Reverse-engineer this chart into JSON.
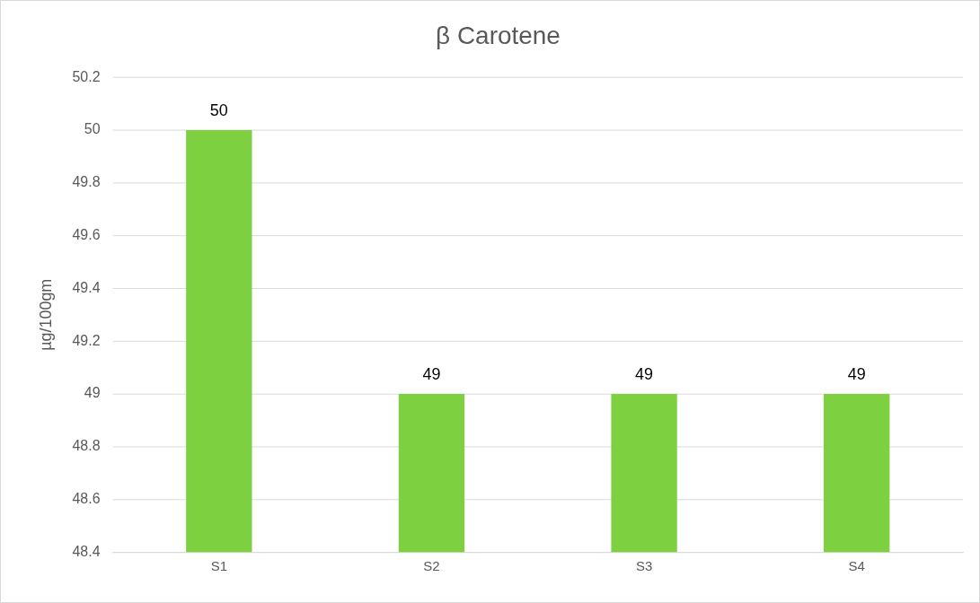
{
  "chart_data": {
    "type": "bar",
    "title": "β Carotene",
    "ylabel": "µg/100gm",
    "categories": [
      "S1",
      "S2",
      "S3",
      "S4"
    ],
    "values": [
      50,
      49,
      49,
      49
    ],
    "color": "#7dd03f",
    "ylim": [
      48.4,
      50.2
    ],
    "yticks": [
      48.4,
      48.6,
      48.8,
      49,
      49.2,
      49.4,
      49.6,
      49.8,
      50,
      50.2
    ],
    "grid": "y",
    "data_labels": true,
    "legend": false
  }
}
